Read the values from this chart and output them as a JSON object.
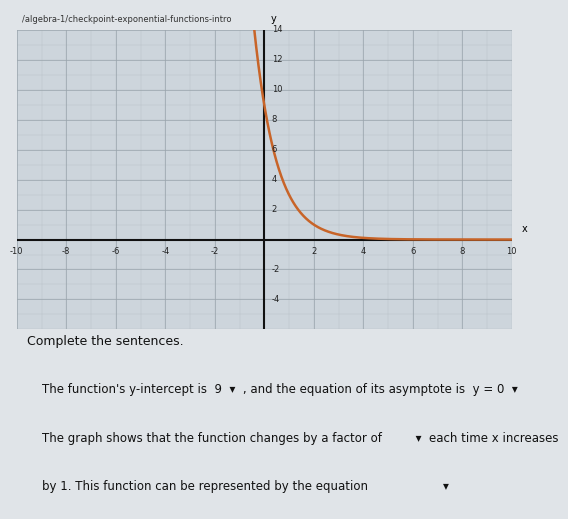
{
  "xlim": [
    -10,
    10
  ],
  "ylim": [
    -6,
    14
  ],
  "xticks": [
    -10,
    -8,
    -6,
    -4,
    -2,
    2,
    4,
    6,
    8,
    10
  ],
  "yticks": [
    -4,
    -2,
    2,
    4,
    6,
    8,
    10,
    12,
    14
  ],
  "curve_color": "#c86428",
  "curve_linewidth": 1.8,
  "y_intercept": 9,
  "base": 0.3333333333,
  "background_color": "#cdd5dc",
  "grid_color": "#b8bec4",
  "grid_color2": "#9aa4ac",
  "axis_color": "#111111",
  "text_color": "#111111",
  "page_bg": "#e0e4e8",
  "header_text": "/algebra-1/checkpoint-exponential-functions-intro",
  "header_color": "#333333"
}
